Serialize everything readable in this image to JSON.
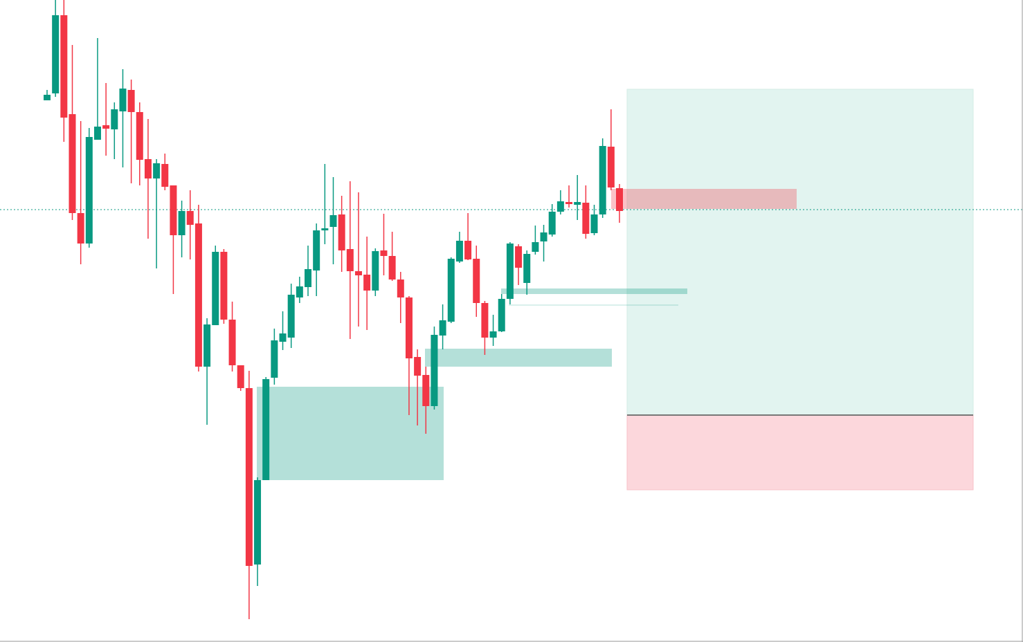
{
  "chart_data": {
    "type": "candlestick",
    "ylim": [
      0,
      928
    ],
    "up_color": "#089981",
    "down_color": "#f23645",
    "series": {
      "open": [
        783,
        793,
        906,
        763,
        620,
        576,
        726,
        747,
        741,
        767,
        798,
        766,
        698,
        670,
        691,
        660,
        588,
        623,
        605,
        398,
        458,
        564,
        466,
        400,
        367,
        112,
        234,
        382,
        434,
        440,
        498,
        513,
        537,
        595,
        600,
        618,
        568,
        536,
        531,
        508,
        566,
        558,
        524,
        498,
        412,
        386,
        341,
        443,
        463,
        550,
        580,
        554,
        490,
        440,
        449,
        496,
        572,
        519,
        564,
        579,
        589,
        622,
        636,
        632,
        635,
        591,
        618,
        716,
        656
      ],
      "high": [
        798,
        928,
        928,
        863,
        753,
        743,
        873,
        808,
        780,
        828,
        813,
        780,
        756,
        698,
        706,
        660,
        638,
        653,
        632,
        468,
        573,
        568,
        492,
        400,
        392,
        238,
        383,
        453,
        478,
        518,
        528,
        573,
        605,
        691,
        672,
        645,
        666,
        650,
        586,
        569,
        619,
        593,
        535,
        500,
        423,
        398,
        456,
        488,
        556,
        593,
        620,
        573,
        493,
        473,
        503,
        578,
        575,
        566,
        602,
        603,
        633,
        653,
        660,
        675,
        660,
        632,
        728,
        770,
        662
      ],
      "low": [
        783,
        788,
        723,
        610,
        546,
        570,
        726,
        703,
        698,
        686,
        663,
        660,
        583,
        540,
        653,
        503,
        556,
        553,
        391,
        314,
        458,
        460,
        391,
        363,
        33,
        81,
        234,
        372,
        422,
        425,
        490,
        500,
        500,
        575,
        546,
        535,
        438,
        456,
        451,
        500,
        530,
        522,
        461,
        328,
        313,
        301,
        336,
        423,
        461,
        548,
        552,
        470,
        415,
        428,
        448,
        488,
        516,
        502,
        560,
        550,
        586,
        618,
        628,
        610,
        583,
        588,
        613,
        653,
        606
      ],
      "close": [
        791,
        906,
        758,
        620,
        576,
        730,
        745,
        742,
        770,
        800,
        766,
        697,
        670,
        692,
        658,
        588,
        623,
        603,
        398,
        459,
        564,
        466,
        400,
        367,
        110,
        234,
        380,
        436,
        446,
        502,
        514,
        539,
        595,
        598,
        617,
        566,
        536,
        530,
        508,
        565,
        558,
        524,
        498,
        410,
        385,
        341,
        444,
        465,
        554,
        580,
        553,
        490,
        440,
        449,
        496,
        576,
        541,
        561,
        578,
        592,
        622,
        637,
        633,
        636,
        590,
        618,
        717,
        657,
        623
      ]
    }
  }
}
